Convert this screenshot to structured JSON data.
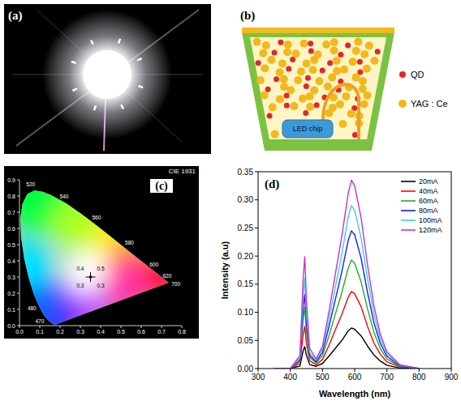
{
  "panel_labels": [
    "(a)",
    "(b)",
    "(c)",
    "(d)"
  ],
  "schematic": {
    "chip_label": "LED chip",
    "legend": [
      {
        "label": "QD",
        "color": "#e3262a"
      },
      {
        "label": "YAG : Ce",
        "color": "#f2b81c"
      }
    ]
  },
  "chart_data": [
    {
      "type": "scatter",
      "title": "CIE 1931",
      "x": [
        0.35
      ],
      "values": [
        0.3
      ],
      "xlim": [
        0,
        0.8
      ],
      "ylim": [
        0,
        0.9
      ],
      "xticks": [
        {
          "value": 0,
          "label": "0.0"
        },
        0.1,
        0.2,
        0.3,
        0.4,
        0.5,
        0.6,
        0.7,
        0.8
      ],
      "yticks": [
        {
          "value": 0,
          "label": "0.0"
        },
        0.1,
        0.2,
        0.3,
        0.4,
        0.5,
        0.6,
        0.7,
        0.8,
        0.9
      ],
      "annotations": [
        "0.4",
        "0.5",
        "0.3",
        "0.3"
      ],
      "locus_labels": [
        "470",
        "480",
        "520",
        "540",
        "560",
        "580",
        "600",
        "620",
        "700"
      ],
      "marker": "cross"
    },
    {
      "type": "line",
      "x_label": "Wavelength (nm)",
      "y_label": "Intensity (a.u)",
      "x": [
        350,
        400,
        430,
        440,
        445,
        450,
        460,
        480,
        500,
        520,
        540,
        560,
        580,
        590,
        600,
        620,
        640,
        660,
        680,
        700,
        740,
        800
      ],
      "series": [
        {
          "name": "20mA",
          "color": "#000000",
          "values": [
            0,
            0,
            0.0045,
            0.032,
            0.039,
            0.024,
            0.007,
            0.004,
            0.009,
            0.022,
            0.036,
            0.05,
            0.067,
            0.072,
            0.07,
            0.058,
            0.04,
            0.024,
            0.013,
            0.006,
            0.001,
            0
          ]
        },
        {
          "name": "40mA",
          "color": "#ff0000",
          "values": [
            0,
            0,
            0.009,
            0.06,
            0.075,
            0.046,
            0.014,
            0.007,
            0.016,
            0.041,
            0.069,
            0.096,
            0.127,
            0.137,
            0.133,
            0.11,
            0.075,
            0.045,
            0.025,
            0.012,
            0.003,
            0
          ]
        },
        {
          "name": "60mA",
          "color": "#22b022",
          "values": [
            0,
            0,
            0.013,
            0.088,
            0.109,
            0.067,
            0.02,
            0.01,
            0.023,
            0.058,
            0.097,
            0.135,
            0.179,
            0.193,
            0.187,
            0.154,
            0.106,
            0.064,
            0.035,
            0.017,
            0.004,
            0
          ]
        },
        {
          "name": "80mA",
          "color": "#1a1aff",
          "values": [
            0,
            0,
            0.015,
            0.107,
            0.132,
            0.081,
            0.024,
            0.012,
            0.029,
            0.074,
            0.123,
            0.172,
            0.228,
            0.245,
            0.238,
            0.196,
            0.135,
            0.081,
            0.044,
            0.022,
            0.005,
            0
          ]
        },
        {
          "name": "100mA",
          "color": "#3fd0e0",
          "values": [
            0,
            0,
            0.019,
            0.13,
            0.161,
            0.099,
            0.029,
            0.015,
            0.035,
            0.087,
            0.145,
            0.203,
            0.27,
            0.29,
            0.281,
            0.232,
            0.16,
            0.096,
            0.052,
            0.026,
            0.006,
            0
          ]
        },
        {
          "name": "120mA",
          "color": "#cc30cc",
          "values": [
            0,
            0,
            0.023,
            0.161,
            0.199,
            0.122,
            0.036,
            0.017,
            0.04,
            0.101,
            0.168,
            0.235,
            0.312,
            0.335,
            0.325,
            0.268,
            0.184,
            0.111,
            0.06,
            0.03,
            0.007,
            0
          ]
        }
      ],
      "xlim": [
        300,
        900
      ],
      "ylim": [
        0,
        0.35
      ],
      "xticks": [
        300,
        400,
        500,
        600,
        700,
        800,
        900
      ],
      "yticks": [
        {
          "value": 0,
          "label": "0.00"
        },
        0.05,
        {
          "value": 0.1,
          "label": "0.10"
        },
        0.15,
        {
          "value": 0.2,
          "label": "0.20"
        },
        0.25,
        {
          "value": 0.3,
          "label": "0.30"
        },
        0.35
      ],
      "legend": "top-right",
      "grid": false,
      "line_style": "solid"
    }
  ]
}
